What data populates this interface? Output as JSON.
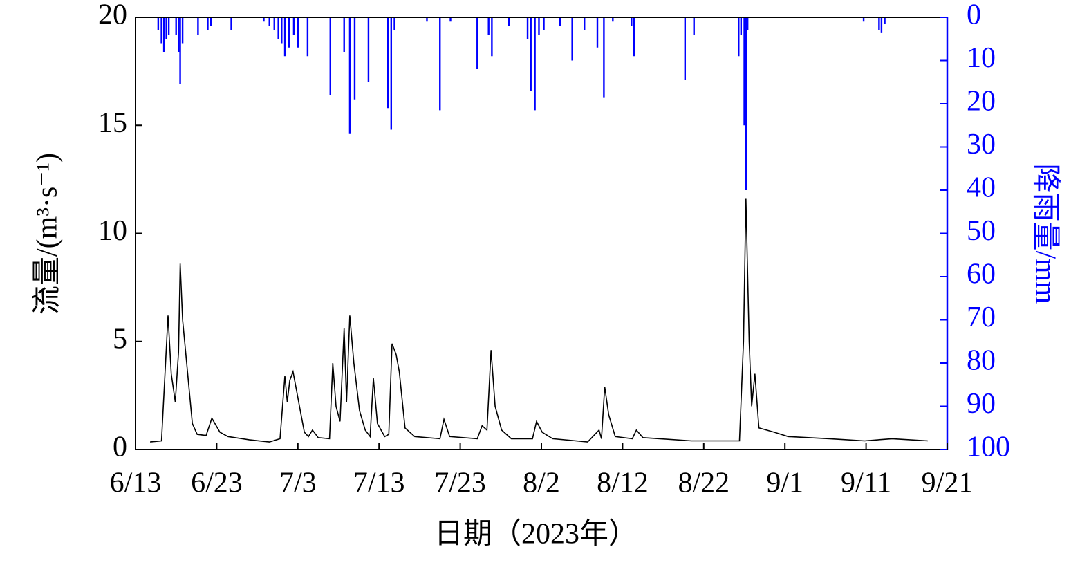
{
  "chart_data": {
    "type": "line",
    "xlabel": "日期（2023年）",
    "ylabel": "流量/(m³·s⁻¹)",
    "y2label": "降雨量/mm",
    "xlim": [
      0,
      100
    ],
    "xticks": [
      {
        "value": 0,
        "label": "6/13"
      },
      {
        "value": 10,
        "label": "6/23"
      },
      {
        "value": 20,
        "label": "7/3"
      },
      {
        "value": 30,
        "label": "7/13"
      },
      {
        "value": 40,
        "label": "7/23"
      },
      {
        "value": 50,
        "label": "8/2"
      },
      {
        "value": 60,
        "label": "8/12"
      },
      {
        "value": 70,
        "label": "8/22"
      },
      {
        "value": 80,
        "label": "9/1"
      },
      {
        "value": 90,
        "label": "9/11"
      },
      {
        "value": 100,
        "label": "9/21"
      }
    ],
    "ylim": [
      0,
      20
    ],
    "yticks": [
      0,
      5,
      10,
      15,
      20
    ],
    "y2lim": [
      0,
      100
    ],
    "y2_inverted": true,
    "y2ticks": [
      0,
      10,
      20,
      30,
      40,
      50,
      60,
      70,
      80,
      90,
      100
    ],
    "y2color": "#0000ff",
    "series": [
      {
        "type": "line",
        "color": "#000000",
        "x": [
          1.8,
          3.2,
          4.0,
          4.4,
          4.9,
          5.3,
          5.5,
          5.8,
          6.3,
          7.0,
          7.6,
          8.7,
          9.4,
          10.4,
          11.4,
          14.0,
          16.5,
          17.8,
          18.4,
          18.7,
          19.0,
          19.4,
          19.8,
          20.3,
          20.8,
          21.3,
          21.8,
          22.5,
          23.9,
          24.3,
          24.7,
          25.2,
          25.7,
          26.0,
          26.4,
          26.9,
          27.6,
          28.3,
          28.9,
          29.3,
          29.8,
          30.7,
          31.2,
          31.6,
          32.1,
          32.5,
          33.2,
          34.4,
          37.5,
          38.0,
          38.7,
          42.1,
          42.7,
          43.3,
          43.8,
          44.3,
          45.1,
          46.3,
          48.9,
          49.4,
          50.1,
          51.4,
          55.7,
          57.1,
          57.4,
          57.8,
          58.3,
          59.1,
          61.2,
          61.7,
          62.5,
          68.5,
          74.4,
          74.9,
          75.2,
          75.6,
          75.9,
          76.3,
          76.8,
          78.7,
          80.4,
          85.5,
          89.8,
          93.2,
          97.6
        ],
        "values": [
          0.35,
          0.4,
          6.2,
          3.5,
          2.2,
          4.5,
          8.6,
          6.0,
          4.0,
          1.2,
          0.7,
          0.65,
          1.45,
          0.8,
          0.6,
          0.45,
          0.35,
          0.5,
          3.4,
          2.2,
          3.2,
          3.6,
          2.8,
          1.8,
          0.8,
          0.6,
          0.9,
          0.55,
          0.5,
          4.0,
          2.0,
          1.3,
          5.6,
          2.2,
          6.2,
          4.0,
          1.8,
          0.9,
          0.6,
          3.3,
          1.2,
          0.6,
          0.7,
          4.9,
          4.4,
          3.6,
          1.0,
          0.6,
          0.5,
          1.4,
          0.6,
          0.5,
          1.1,
          0.9,
          4.6,
          2.0,
          0.9,
          0.5,
          0.5,
          1.3,
          0.8,
          0.5,
          0.35,
          0.9,
          0.5,
          2.9,
          1.6,
          0.6,
          0.5,
          0.9,
          0.55,
          0.4,
          0.4,
          5.0,
          11.6,
          5.0,
          2.0,
          3.5,
          1.0,
          0.8,
          0.6,
          0.5,
          0.4,
          0.5,
          0.4
        ]
      },
      {
        "type": "bar",
        "axis": "y2",
        "color": "#0000ff",
        "x": [
          2.8,
          3.2,
          3.5,
          3.8,
          4.1,
          5.0,
          5.3,
          5.5,
          5.8,
          7.7,
          8.9,
          9.3,
          11.8,
          15.8,
          16.5,
          17.1,
          17.6,
          18.0,
          18.4,
          18.9,
          19.5,
          20.0,
          21.2,
          24.0,
          25.7,
          26.4,
          27.0,
          28.7,
          31.1,
          31.5,
          31.9,
          35.9,
          37.5,
          38.8,
          42.1,
          43.5,
          43.9,
          46.0,
          48.3,
          48.7,
          49.2,
          49.7,
          50.3,
          52.3,
          53.8,
          55.3,
          56.9,
          57.7,
          58.8,
          61.1,
          61.4,
          67.7,
          68.8,
          74.3,
          74.6,
          75.0,
          75.2,
          75.4,
          89.7,
          91.6,
          91.9,
          92.3
        ],
        "values": [
          3,
          6,
          8,
          5,
          4,
          4,
          8,
          15.5,
          6,
          4,
          3,
          2,
          3,
          1,
          2,
          3,
          5,
          6,
          9,
          7,
          4,
          7,
          9,
          18,
          8,
          27,
          19,
          15,
          21,
          26,
          3,
          1,
          21.5,
          1,
          12,
          4,
          9,
          2,
          5,
          17,
          21.5,
          4,
          3,
          2,
          10,
          3,
          7,
          18.5,
          1,
          2,
          9,
          14.5,
          4,
          9,
          4,
          25,
          40,
          3,
          1,
          3,
          3.5,
          1.5
        ]
      }
    ]
  }
}
